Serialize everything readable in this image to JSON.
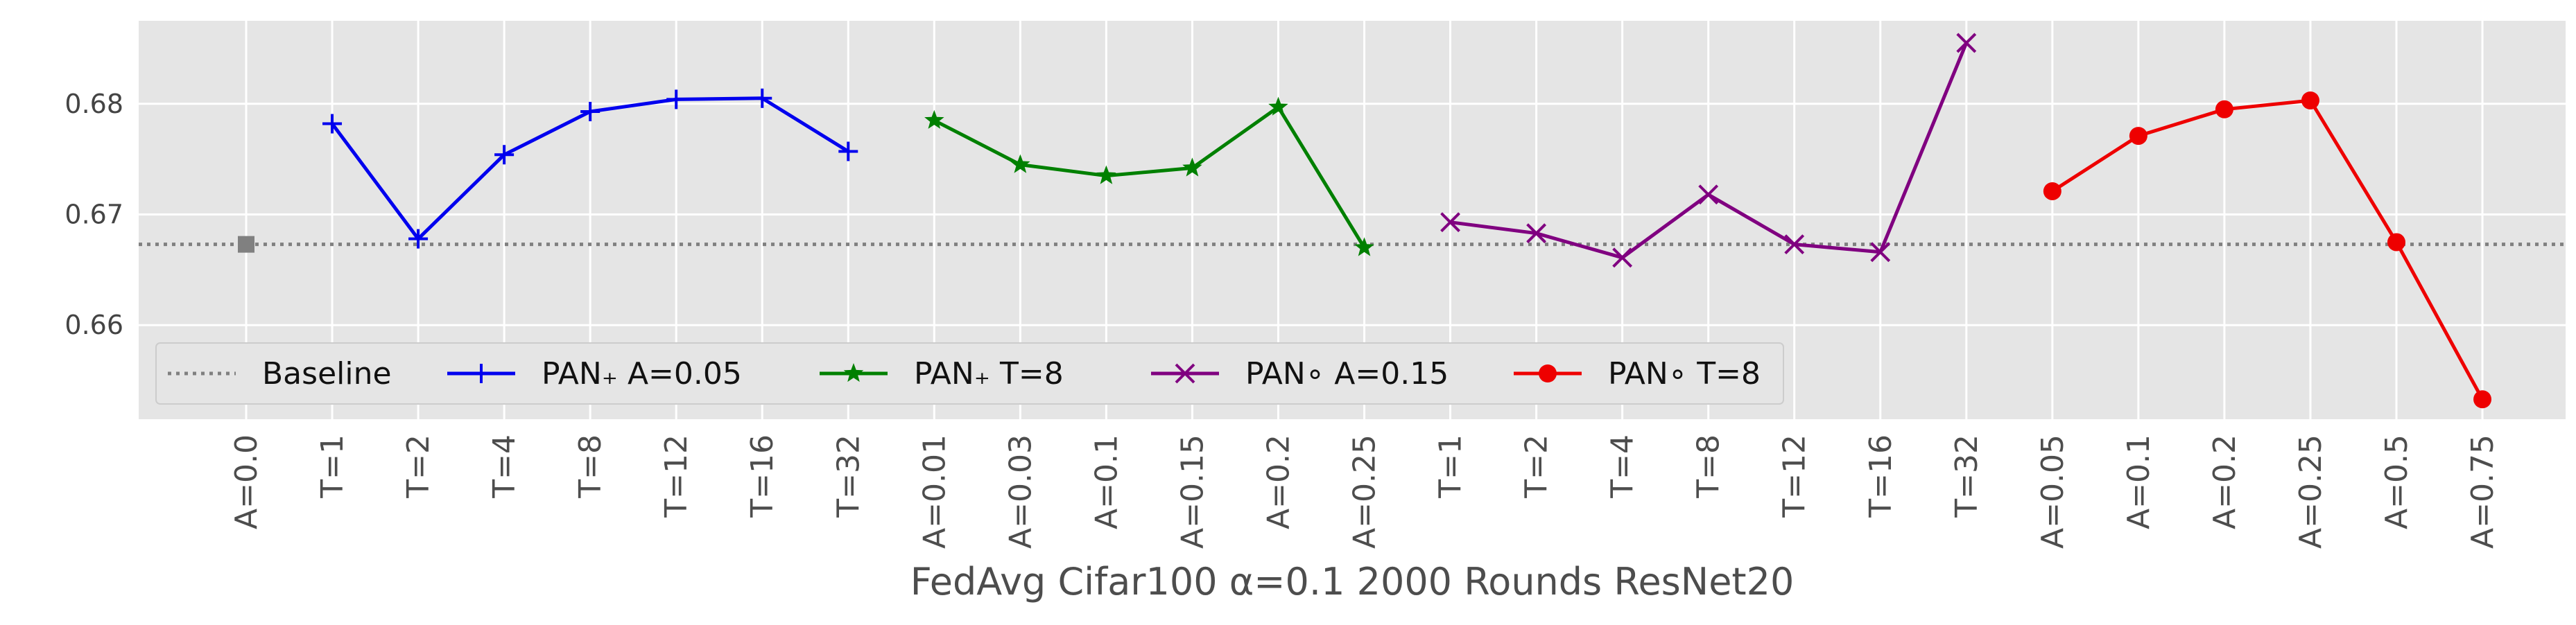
{
  "chart_data": {
    "type": "line",
    "xlabel": "FedAvg Cifar100 α=0.1 2000 Rounds ResNet20",
    "ylabel": "",
    "categories": [
      "A=0.0",
      "T=1",
      "T=2",
      "T=4",
      "T=8",
      "T=12",
      "T=16",
      "T=32",
      "A=0.01",
      "A=0.03",
      "A=0.1",
      "A=0.15",
      "A=0.2",
      "A=0.25",
      "T=1",
      "T=2",
      "T=4",
      "T=8",
      "T=12",
      "T=16",
      "T=32",
      "A=0.05",
      "A=0.1",
      "A=0.2",
      "A=0.25",
      "A=0.5",
      "A=0.75"
    ],
    "ylim": [
      0.6515,
      0.6875
    ],
    "yticks": [
      0.66,
      0.67,
      0.68
    ],
    "ytick_labels": [
      "0.66",
      "0.67",
      "0.68"
    ],
    "grid": true,
    "legend_position": "lower-left",
    "baseline": {
      "name": "Baseline",
      "value": 0.6673,
      "color": "#808080",
      "x": 0
    },
    "series": [
      {
        "name": "PAN₊ A=0.05",
        "color": "#0000ee",
        "marker": "plus",
        "x": [
          1,
          2,
          3,
          4,
          5,
          6,
          7
        ],
        "values": [
          0.6782,
          0.6678,
          0.6754,
          0.6793,
          0.6804,
          0.6805,
          0.6757
        ]
      },
      {
        "name": "PAN₊ T=8",
        "color": "#008000",
        "marker": "star",
        "x": [
          8,
          9,
          10,
          11,
          12,
          13
        ],
        "values": [
          0.6785,
          0.6745,
          0.6735,
          0.6742,
          0.6797,
          0.667
        ]
      },
      {
        "name": "PAN∘ A=0.15",
        "color": "#800080",
        "marker": "x",
        "x": [
          14,
          15,
          16,
          17,
          18,
          19,
          20
        ],
        "values": [
          0.6693,
          0.6683,
          0.6661,
          0.6718,
          0.6673,
          0.6666,
          0.6855
        ]
      },
      {
        "name": "PAN∘ T=8",
        "color": "#ee0000",
        "marker": "circle",
        "x": [
          21,
          22,
          23,
          24,
          25,
          26
        ],
        "values": [
          0.6721,
          0.6771,
          0.6795,
          0.6803,
          0.6675,
          0.6533
        ]
      }
    ]
  }
}
